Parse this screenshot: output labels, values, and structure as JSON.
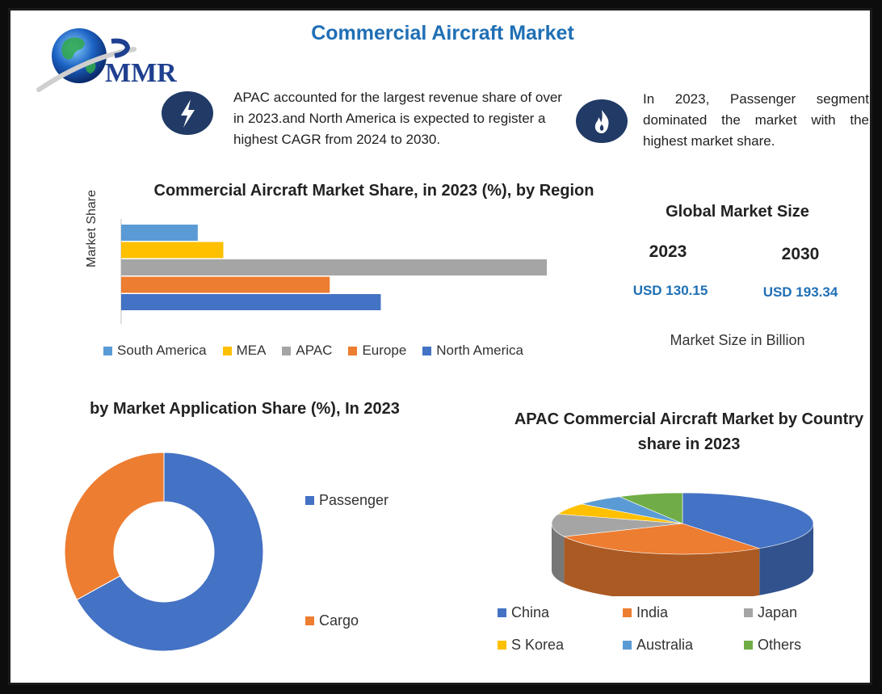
{
  "title": "Commercial Aircraft Market",
  "logo_text": "MMR",
  "notes": {
    "left": "APAC accounted for the largest revenue share of over in 2023.and North America is expected to register a highest CAGR from 2024 to 2030.",
    "right": "In 2023, Passenger segment dominated the market with the highest market share.",
    "left_icon": "lightning-icon",
    "right_icon": "flame-icon"
  },
  "global_market": {
    "title": "Global Market Size",
    "year_a": "2023",
    "year_b": "2030",
    "value_a": "USD 130.15",
    "value_b": "USD 193.34",
    "unit_note": "Market Size in Billion"
  },
  "chart_data": [
    {
      "type": "bar",
      "orientation": "horizontal",
      "title": "Commercial Aircraft Market Share, in 2023 (%), by Region",
      "ylabel": "Market Share",
      "categories": [
        "South America",
        "MEA",
        "APAC",
        "Europe",
        "North America"
      ],
      "values": [
        9,
        12,
        50,
        24.5,
        30.5
      ],
      "colors": [
        "#5b9bd5",
        "#ffc000",
        "#a5a5a5",
        "#ed7d31",
        "#4472c4"
      ],
      "xlim": [
        0,
        50
      ],
      "legend": "bottom"
    },
    {
      "type": "pie",
      "variant": "donut",
      "title": "by Market Application Share (%), In 2023",
      "categories": [
        "Passenger",
        "Cargo"
      ],
      "values": [
        67,
        33
      ],
      "colors": [
        "#4472c4",
        "#ed7d31"
      ],
      "legend": "right"
    },
    {
      "type": "pie",
      "variant": "3d",
      "title": "APAC Commercial Aircraft Market by Country share in 2023",
      "categories": [
        "China",
        "India",
        "Japan",
        "S Korea",
        "Australia",
        "Others"
      ],
      "values": [
        40,
        28,
        12,
        6,
        6,
        8
      ],
      "colors": [
        "#4472c4",
        "#ed7d31",
        "#a5a5a5",
        "#ffc000",
        "#5b9bd5",
        "#70ad47"
      ],
      "legend": "bottom"
    }
  ]
}
